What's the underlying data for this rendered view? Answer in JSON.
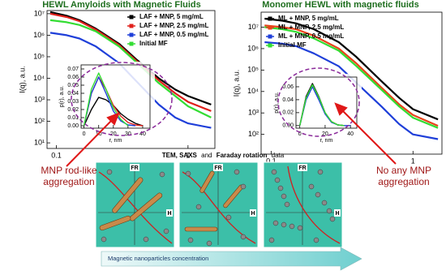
{
  "chart_data": [
    {
      "type": "line",
      "title": "HEWL Amyloids with Magnetic Fluids",
      "ylabel": "I(q), a.u.",
      "xscale": "log",
      "yscale": "log",
      "xlim": [
        0.085,
        1.6
      ],
      "ylim": [
        5.5,
        14000000
      ],
      "xticks": [
        0.1,
        1
      ],
      "yticks": [
        {
          "value": 10,
          "label": "10¹"
        },
        {
          "value": 100,
          "label": "10²"
        },
        {
          "value": 1000,
          "label": "10³"
        },
        {
          "value": 10000,
          "label": "10⁴"
        },
        {
          "value": 100000,
          "label": "10⁵"
        },
        {
          "value": 1000000,
          "label": "10⁶"
        },
        {
          "value": 10000000,
          "label": "10⁷"
        }
      ],
      "legend": "upper right",
      "x": [
        0.09,
        0.12,
        0.15,
        0.2,
        0.3,
        0.4,
        0.6,
        0.8,
        1,
        1.5
      ],
      "series": [
        {
          "name": "LAF + MNP, 5 mg/mL",
          "color": "#000000",
          "values": [
            12000000,
            8000000,
            5000000,
            2000000,
            400000,
            80000,
            10000,
            3000,
            1500,
            600
          ]
        },
        {
          "name": "LAF + MNP, 2.5 mg/mL",
          "color": "#e0201b",
          "values": [
            10000000,
            7000000,
            4500000,
            1800000,
            350000,
            70000,
            8000,
            2000,
            800,
            300
          ]
        },
        {
          "name": "LAF + MNP, 0.5 mg/mL",
          "color": "#1f3fd9",
          "values": [
            1300000,
            1000000,
            700000,
            300000,
            50000,
            8000,
            600,
            150,
            80,
            50
          ]
        },
        {
          "name": "Initial MF",
          "color": "#33dd33",
          "values": [
            5000000,
            4000000,
            3000000,
            1500000,
            300000,
            60000,
            6000,
            1500,
            500,
            150
          ]
        }
      ],
      "annotation": "MNP rod-like aggregation"
    },
    {
      "type": "line",
      "xlabel": "r, nm",
      "ylabel": "p(r), a.u.",
      "xlim": [
        -2,
        45
      ],
      "ylim": [
        -0.003,
        0.075
      ],
      "xticks": [
        0,
        10,
        20,
        30,
        40
      ],
      "yticks": [
        {
          "value": 0,
          "label": "0.00"
        },
        0.01,
        0.02,
        0.03,
        0.04,
        0.05,
        0.06,
        0.07
      ],
      "x": [
        0,
        5,
        10,
        15,
        20,
        25,
        30,
        35,
        40
      ],
      "series": [
        {
          "color": "#000000",
          "values": [
            0,
            0.02,
            0.035,
            0.032,
            0.025,
            0.015,
            0.008,
            0.003,
            0
          ]
        },
        {
          "color": "#e0201b",
          "values": [
            0,
            0.04,
            0.06,
            0.045,
            0.025,
            0.012,
            0.004,
            0.001,
            0
          ]
        },
        {
          "color": "#1f3fd9",
          "values": [
            0,
            0.04,
            0.06,
            0.04,
            0.018,
            0.006,
            0.001,
            0,
            null
          ]
        },
        {
          "color": "#33dd33",
          "values": [
            0,
            0.045,
            0.065,
            0.045,
            0.022,
            0.008,
            0,
            null,
            null
          ]
        }
      ]
    },
    {
      "type": "line",
      "title": "Monomer HEWL with magnetic fluids",
      "ylabel": "I(q), a.u.",
      "xscale": "log",
      "yscale": "log",
      "xlim": [
        0.085,
        1.6
      ],
      "ylim": [
        12,
        50000000
      ],
      "xticks": [
        0.1,
        1
      ],
      "yticks": [
        {
          "value": 100,
          "label": "10²"
        },
        {
          "value": 1000,
          "label": "10³"
        },
        {
          "value": 10000,
          "label": "10⁴"
        },
        {
          "value": 100000,
          "label": "10⁵"
        },
        {
          "value": 1000000,
          "label": "10⁶"
        },
        {
          "value": 10000000,
          "label": "10⁷"
        }
      ],
      "legend": "upper left",
      "x": [
        0.09,
        0.12,
        0.15,
        0.2,
        0.3,
        0.4,
        0.6,
        0.8,
        1,
        1.5
      ],
      "series": [
        {
          "name": "ML + MNP, 5 mg/mL",
          "color": "#000000",
          "values": [
            25000000,
            20000000,
            15000000,
            8000000,
            2000000,
            400000,
            30000,
            5000,
            1500,
            500
          ]
        },
        {
          "name": "ML + MNP, 2.5 mg/mL",
          "color": "#e8431a",
          "values": [
            12000000,
            10000000,
            8000000,
            4000000,
            1000000,
            200000,
            15000,
            2500,
            800,
            250
          ]
        },
        {
          "name": "ML + MNP, 0.5 mg/mL",
          "color": "#1f3fd9",
          "values": [
            2000000,
            1700000,
            1300000,
            600000,
            150000,
            25000,
            2000,
            300,
            100,
            60
          ]
        },
        {
          "name": "Initial MF",
          "color": "#33dd33",
          "values": [
            10000000,
            8000000,
            6000000,
            3000000,
            800000,
            150000,
            12000,
            2000,
            600,
            200
          ]
        }
      ],
      "annotation": "No any MNP aggregation"
    },
    {
      "type": "line",
      "xlabel": "r, nm",
      "ylabel": "p(r), a.u.",
      "xlim": [
        -3,
        45
      ],
      "ylim": [
        -0.004,
        0.075
      ],
      "xticks": [
        0,
        20,
        40
      ],
      "yticks": [
        {
          "value": 0,
          "label": "0.00"
        },
        0.02,
        0.04,
        0.06
      ],
      "x": [
        0,
        5,
        10,
        15,
        20,
        25,
        30,
        35,
        40
      ],
      "series": [
        {
          "color": "#000000",
          "values": [
            0,
            0.045,
            0.065,
            0.045,
            0.02,
            0.006,
            0.001,
            0,
            null
          ]
        },
        {
          "color": "#e8431a",
          "values": [
            0,
            0.042,
            0.062,
            0.043,
            0.019,
            0.006,
            0.001,
            0,
            null
          ]
        },
        {
          "color": "#1f3fd9",
          "values": [
            0,
            0.04,
            0.06,
            0.04,
            0.018,
            0.005,
            0.001,
            0,
            0
          ]
        },
        {
          "color": "#33dd33",
          "values": [
            0,
            0.043,
            0.063,
            0.044,
            0.02,
            0.006,
            0.001,
            0,
            null
          ]
        }
      ]
    }
  ],
  "schematic": {
    "caption": [
      "TEM, SAXS",
      "and",
      "Faraday rotation",
      "data"
    ],
    "panels": [
      {
        "y_label": "FR",
        "x_label": "H"
      },
      {
        "y_label": "FR",
        "x_label": "H"
      },
      {
        "y_label": "FR",
        "x_label": "H"
      }
    ],
    "arrow_label": "Magnetic nanoparticles concentration"
  }
}
